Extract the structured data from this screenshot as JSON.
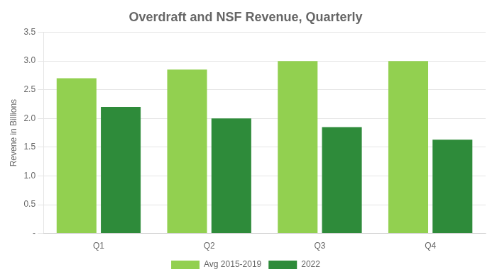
{
  "chart_data": {
    "type": "bar",
    "title": "Overdraft and NSF Revenue, Quarterly",
    "categories": [
      "Q1",
      "Q2",
      "Q3",
      "Q4"
    ],
    "series": [
      {
        "name": "Avg 2015-2019",
        "color": "#92D050",
        "values": [
          2.7,
          2.85,
          3.0,
          3.0
        ]
      },
      {
        "name": "2022",
        "color": "#2E8B3A",
        "values": [
          2.2,
          2.0,
          1.85,
          1.63
        ]
      }
    ],
    "ylabel": "Revene in Billions",
    "ylim": [
      0,
      3.5
    ],
    "yticks": [
      {
        "value": 0,
        "label": "-"
      },
      0.5,
      {
        "value": 1.0,
        "label": "1.0"
      },
      1.5,
      {
        "value": 2.0,
        "label": "2.0"
      },
      2.5,
      {
        "value": 3.0,
        "label": "3.0"
      },
      3.5
    ],
    "grid": true,
    "legend": "bottom"
  }
}
